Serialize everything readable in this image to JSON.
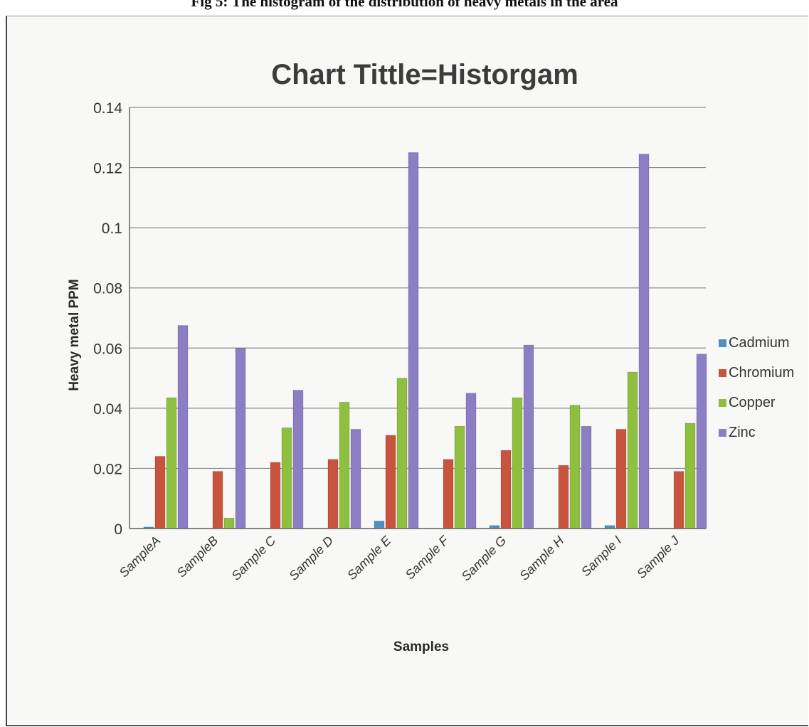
{
  "caption": "Fig 5: The histogram of the distribution of heavy metals in the area",
  "chart_data": {
    "type": "bar",
    "title": "Chart Tittle=Historgam",
    "xlabel": "Samples",
    "ylabel": "Heavy metal PPM",
    "ylim": [
      0,
      0.14
    ],
    "yticks": [
      "0",
      "0.02",
      "0.04",
      "0.06",
      "0.08",
      "0.1",
      "0.12",
      "0.14"
    ],
    "grid": true,
    "legend_position": "right",
    "categories": [
      "SampleA",
      "SampleB",
      "Sample C",
      "Sample D",
      "Sample E",
      "Sample F",
      "Sample G",
      "Sample H",
      "Sample I",
      "Sample J"
    ],
    "series": [
      {
        "name": "Cadmium",
        "color": "#4f8fc4",
        "values": [
          0.0005,
          0,
          0,
          0,
          0.0025,
          0,
          0.001,
          0,
          0.001,
          0
        ]
      },
      {
        "name": "Chromium",
        "color": "#c9543e",
        "values": [
          0.024,
          0.019,
          0.022,
          0.023,
          0.031,
          0.023,
          0.026,
          0.021,
          0.033,
          0.019
        ]
      },
      {
        "name": "Copper",
        "color": "#8fbf3e",
        "values": [
          0.0435,
          0.0035,
          0.0335,
          0.042,
          0.05,
          0.034,
          0.0435,
          0.041,
          0.052,
          0.035
        ]
      },
      {
        "name": "Zinc",
        "color": "#8c7ec4",
        "values": [
          0.0675,
          0.06,
          0.046,
          0.033,
          0.125,
          0.045,
          0.061,
          0.034,
          0.1245,
          0.058
        ]
      }
    ]
  }
}
